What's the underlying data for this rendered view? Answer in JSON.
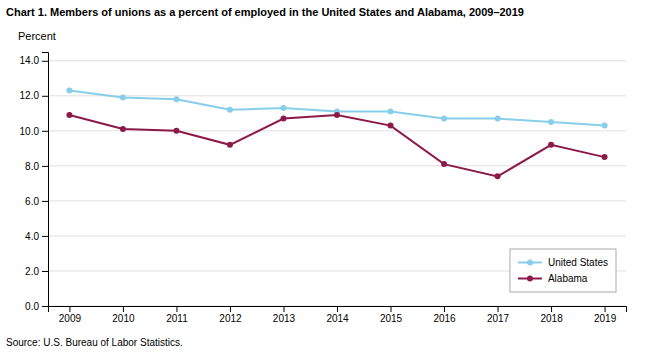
{
  "chart_data": {
    "type": "line",
    "title": "Chart 1. Members of unions as a percent of employed in the United States and Alabama, 2009–2019",
    "ylabel": "Percent",
    "annotations": [
      "Source: U.S. Bureau of Labor Statistics."
    ],
    "x": [
      2009,
      2010,
      2011,
      2012,
      2013,
      2014,
      2015,
      2016,
      2017,
      2018,
      2019
    ],
    "xlim": [
      2008.6,
      2019.4
    ],
    "xticks": [
      2009,
      2010,
      2011,
      2012,
      2013,
      2014,
      2015,
      2016,
      2017,
      2018,
      2019
    ],
    "ylim": [
      0,
      14.5
    ],
    "yticks": [
      {
        "value": 0,
        "label": "0.0"
      },
      {
        "value": 2,
        "label": "2.0"
      },
      {
        "value": 4,
        "label": "4.0"
      },
      {
        "value": 6,
        "label": "6.0"
      },
      {
        "value": 8,
        "label": "8.0"
      },
      {
        "value": 10,
        "label": "10.0"
      },
      {
        "value": 12,
        "label": "12.0"
      },
      {
        "value": 14,
        "label": "14.0"
      }
    ],
    "grid": true,
    "legend": "lower right",
    "marker": "circle",
    "series": [
      {
        "name": "United States",
        "color": "#87CEEB",
        "values": [
          12.3,
          11.9,
          11.8,
          11.2,
          11.3,
          11.1,
          11.1,
          10.7,
          10.7,
          10.5,
          10.3
        ]
      },
      {
        "name": "Alabama",
        "color": "#8B1A4A",
        "values": [
          10.9,
          10.1,
          10.0,
          9.2,
          10.7,
          10.9,
          10.3,
          8.1,
          7.4,
          9.2,
          8.5
        ]
      }
    ]
  }
}
